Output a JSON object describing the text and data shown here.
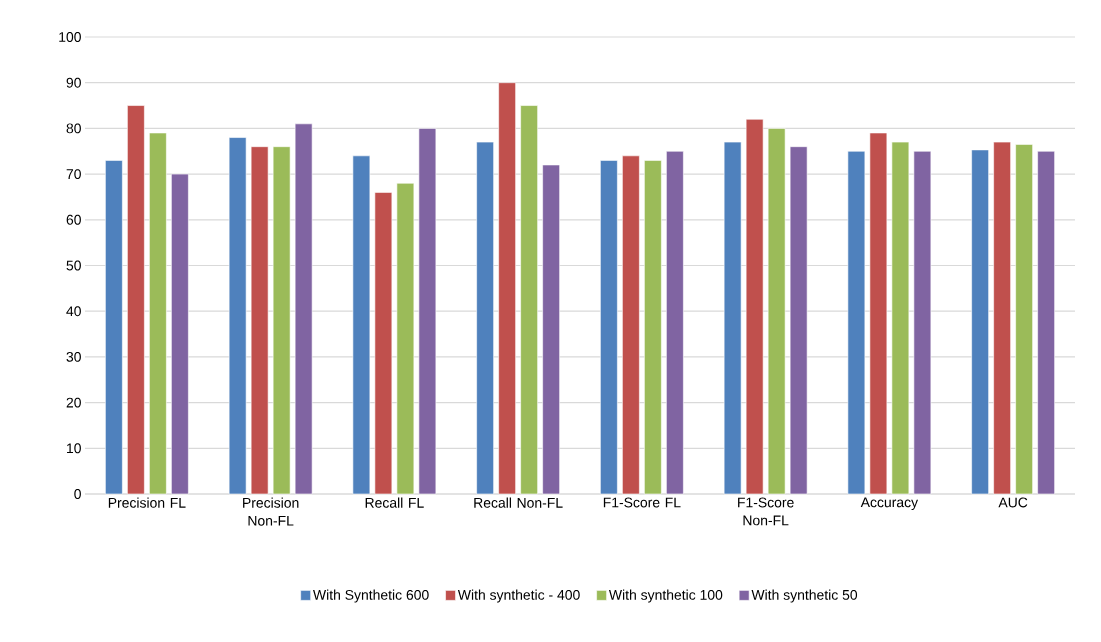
{
  "chart_data": {
    "type": "bar",
    "categories": [
      "Precision FL",
      "Precision Non-FL",
      "Recall FL",
      "Recall Non-FL",
      "F1-Score FL",
      "F1-Score Non-FL",
      "Accuracy",
      "AUC"
    ],
    "series": [
      {
        "name": "With Synthetic 600",
        "color": "#4f81bd",
        "values": [
          73,
          78,
          74,
          77,
          73,
          77,
          75,
          75.3
        ]
      },
      {
        "name": "With synthetic - 400",
        "color": "#c0504d",
        "values": [
          85,
          76,
          66,
          90,
          74,
          82,
          79,
          77
        ]
      },
      {
        "name": "With synthetic 100",
        "color": "#9bbb59",
        "values": [
          79,
          76,
          68,
          85,
          73,
          80,
          77,
          76.5
        ]
      },
      {
        "name": "With synthetic 50",
        "color": "#8064a2",
        "values": [
          70,
          81,
          80,
          72,
          75,
          76,
          75,
          75
        ]
      }
    ],
    "ylim": [
      0,
      100
    ],
    "yticks": [
      0,
      10,
      20,
      30,
      40,
      50,
      60,
      70,
      80,
      90,
      100
    ],
    "grid": "y",
    "legend": "bottom"
  }
}
